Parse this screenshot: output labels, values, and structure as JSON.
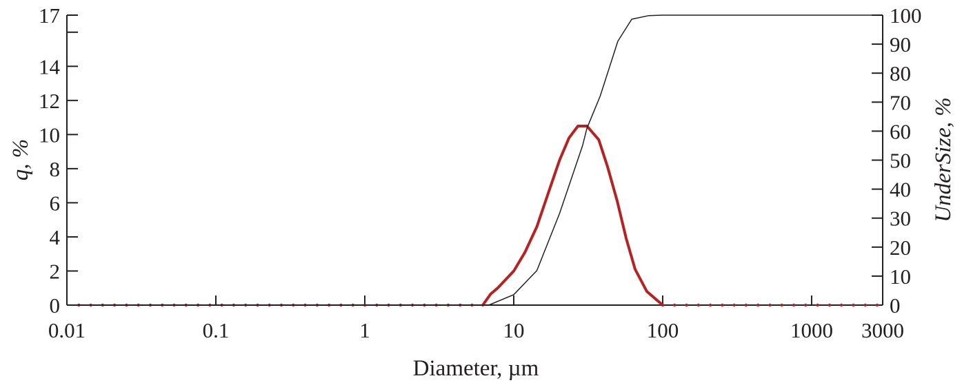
{
  "chart_data": {
    "type": "line",
    "title": "",
    "xlabel": "Diameter, µm",
    "ylabel_left": "q, %",
    "ylabel_right": "UnderSize, %",
    "x_scale": "log",
    "xlim": [
      0.01,
      3000
    ],
    "ylim_left": [
      0,
      17
    ],
    "ylim_right": [
      0,
      100
    ],
    "x_ticks": [
      "0.01",
      "0.1",
      "1",
      "10",
      "100",
      "1000",
      "3000"
    ],
    "x_tick_values": [
      0.01,
      0.1,
      1,
      10,
      100,
      1000,
      3000
    ],
    "y_left_ticks": [
      "0",
      "2",
      "4",
      "6",
      "8",
      "10",
      "12",
      "14",
      "17"
    ],
    "y_left_tick_values": [
      0,
      2,
      4,
      6,
      8,
      10,
      12,
      14,
      17
    ],
    "y_left_minor_ticks": [
      16
    ],
    "y_right_ticks": [
      "0",
      "10",
      "20",
      "30",
      "40",
      "50",
      "60",
      "70",
      "80",
      "90",
      "100"
    ],
    "y_right_tick_values": [
      0,
      10,
      20,
      30,
      40,
      50,
      60,
      70,
      80,
      90,
      100
    ],
    "grid": false,
    "legend": "none",
    "series": [
      {
        "axis": "left",
        "color": "#b5221f",
        "style": "thick line with dotted markers",
        "x": [
          6.2,
          7.0,
          7.8,
          10,
          11.9,
          14.3,
          17.1,
          20.3,
          23.5,
          27,
          31,
          37.2,
          42.7,
          49.5,
          56.9,
          65.3,
          78.3,
          100
        ],
        "y": [
          0,
          0.65,
          1.0,
          2.0,
          3.1,
          4.6,
          6.6,
          8.5,
          9.8,
          10.5,
          10.5,
          9.7,
          8.1,
          6.1,
          3.9,
          2.1,
          0.8,
          0
        ]
      },
      {
        "axis": "right",
        "color": "#231f20",
        "style": "thin line",
        "x": [
          0.01,
          6.8,
          10,
          14.3,
          20.3,
          29,
          31,
          38,
          50,
          62,
          80,
          100,
          3000
        ],
        "y": [
          0,
          0,
          3.6,
          11.9,
          31.6,
          55,
          61,
          72,
          91,
          98.6,
          99.8,
          100,
          100
        ]
      }
    ]
  }
}
